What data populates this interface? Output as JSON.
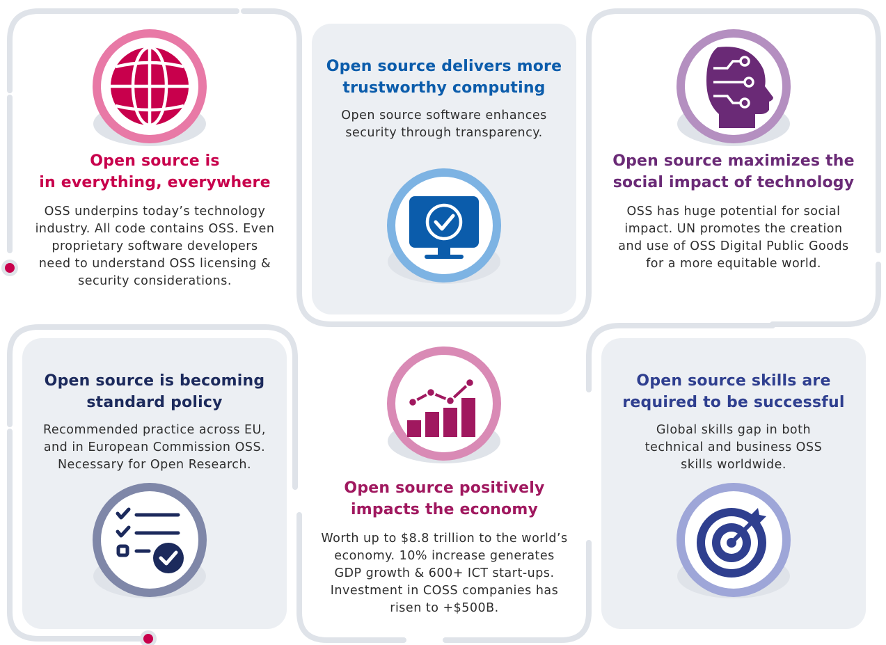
{
  "colors": {
    "frame": "#dfe3e9",
    "card_bg": "#eceff3",
    "text": "#2e2e2e",
    "dot": "#c8004c"
  },
  "cards": [
    {
      "title": "Open source is\nin everything, everywhere",
      "body": "OSS underpins today’s technology\nindustry. All code contains OSS. Even\nproprietary software developers\nneed to understand OSS licensing &\nsecurity considerations.",
      "title_color": "#c8004c",
      "ring_color": "#e879a6",
      "icon": "globe-icon"
    },
    {
      "title": "Open source delivers more\ntrustworthy computing",
      "body": "Open source software enhances\nsecurity through transparency.",
      "title_color": "#0b5cab",
      "ring_color": "#7db3e3",
      "icon": "secure-monitor-icon"
    },
    {
      "title": "Open source maximizes the\nsocial impact of technology",
      "body": "OSS has huge potential for social\nimpact. UN promotes the creation\nand use of OSS Digital Public Goods\nfor a more equitable world.",
      "title_color": "#6a2a76",
      "ring_color": "#b48fc0",
      "icon": "ai-head-icon"
    },
    {
      "title": "Open source is becoming\nstandard policy",
      "body": "Recommended practice across EU,\nand in European Commission OSS.\nNecessary for Open Research.",
      "title_color": "#1c2a5c",
      "ring_color": "#7f87a8",
      "icon": "checklist-icon"
    },
    {
      "title": "Open source positively\nimpacts the economy",
      "body": "Worth up to $8.8 trillion to the world’s\neconomy. 10% increase generates\nGDP growth & 600+ ICT start-ups.\nInvestment in COSS companies has\nrisen to +$500B.",
      "title_color": "#a0185f",
      "ring_color": "#d98ab5",
      "icon": "growth-chart-icon"
    },
    {
      "title": "Open source skills are\nrequired to be successful",
      "body": "Global skills gap in both\ntechnical and business OSS\nskills worldwide.",
      "title_color": "#2f3f8f",
      "ring_color": "#9ea6d8",
      "icon": "target-icon"
    }
  ]
}
